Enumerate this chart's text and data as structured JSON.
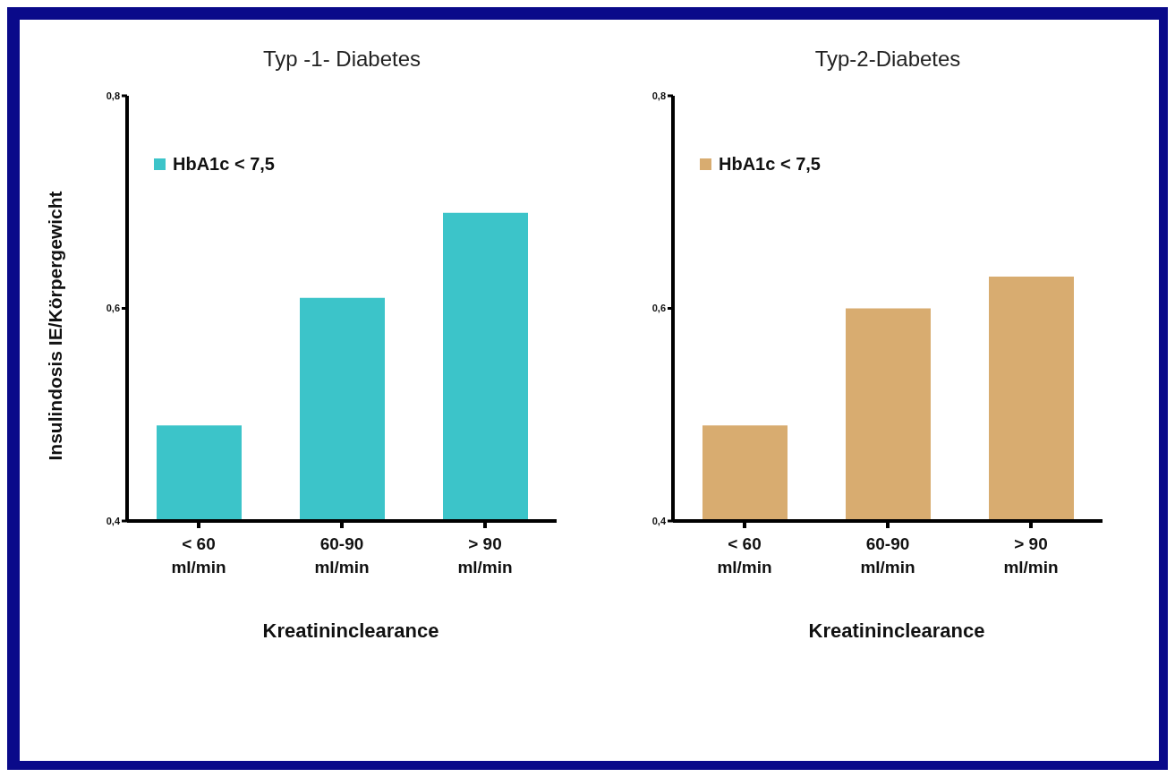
{
  "chart_data": [
    {
      "type": "bar",
      "title": "Typ -1- Diabetes",
      "xlabel": "Kreatininclearance",
      "ylabel": "Insulindosis IE/Körpergewicht",
      "categories": [
        "< 60\nml/min",
        "60-90\nml/min",
        "> 90\nml/min"
      ],
      "series": [
        {
          "name": "HbA1c < 7,5",
          "color": "#3cc4c9",
          "values": [
            0.49,
            0.61,
            0.69
          ]
        }
      ],
      "ylim": [
        0.4,
        0.8
      ],
      "yticks": [
        {
          "value": 0.4,
          "label": "0,4"
        },
        {
          "value": 0.6,
          "label": "0,6"
        },
        {
          "value": 0.8,
          "label": "0,8"
        }
      ],
      "grid": false,
      "legend": "top left"
    },
    {
      "type": "bar",
      "title": "Typ-2-Diabetes",
      "xlabel": "Kreatininclearance",
      "categories": [
        "< 60\nml/min",
        "60-90\nml/min",
        "> 90\nml/min"
      ],
      "series": [
        {
          "name": "HbA1c < 7,5",
          "color": "#d8ac70",
          "values": [
            0.49,
            0.6,
            0.63
          ]
        }
      ],
      "ylim": [
        0.4,
        0.8
      ],
      "yticks": [
        {
          "value": 0.4,
          "label": "0,4"
        },
        {
          "value": 0.6,
          "label": "0,6"
        },
        {
          "value": 0.8,
          "label": "0,8"
        }
      ],
      "grid": false,
      "legend": "top left"
    }
  ]
}
